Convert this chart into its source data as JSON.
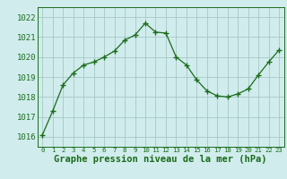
{
  "x": [
    0,
    1,
    2,
    3,
    4,
    5,
    6,
    7,
    8,
    9,
    10,
    11,
    12,
    13,
    14,
    15,
    16,
    17,
    18,
    19,
    20,
    21,
    22,
    23
  ],
  "y": [
    1016.1,
    1017.3,
    1018.6,
    1019.2,
    1019.6,
    1019.75,
    1020.0,
    1020.3,
    1020.85,
    1021.1,
    1021.7,
    1021.25,
    1021.2,
    1020.0,
    1019.6,
    1018.85,
    1018.3,
    1018.05,
    1018.0,
    1018.15,
    1018.4,
    1019.1,
    1019.75,
    1020.35
  ],
  "line_color": "#1a6b1a",
  "marker": "+",
  "bg_color": "#d0ecec",
  "grid_color": "#a8c8c8",
  "xlabel": "Graphe pression niveau de la mer (hPa)",
  "xlabel_fontsize": 7.5,
  "xlabel_color": "#1a6b1a",
  "ylim_min": 1015.5,
  "ylim_max": 1022.5,
  "ytick_labels": [
    "1016",
    "1017",
    "1018",
    "1019",
    "1020",
    "1021",
    "1022"
  ],
  "ytick_values": [
    1016,
    1017,
    1018,
    1019,
    1020,
    1021,
    1022
  ],
  "tick_fontsize": 6.5,
  "tick_color": "#1a6b1a",
  "spine_color": "#1a6b1a"
}
